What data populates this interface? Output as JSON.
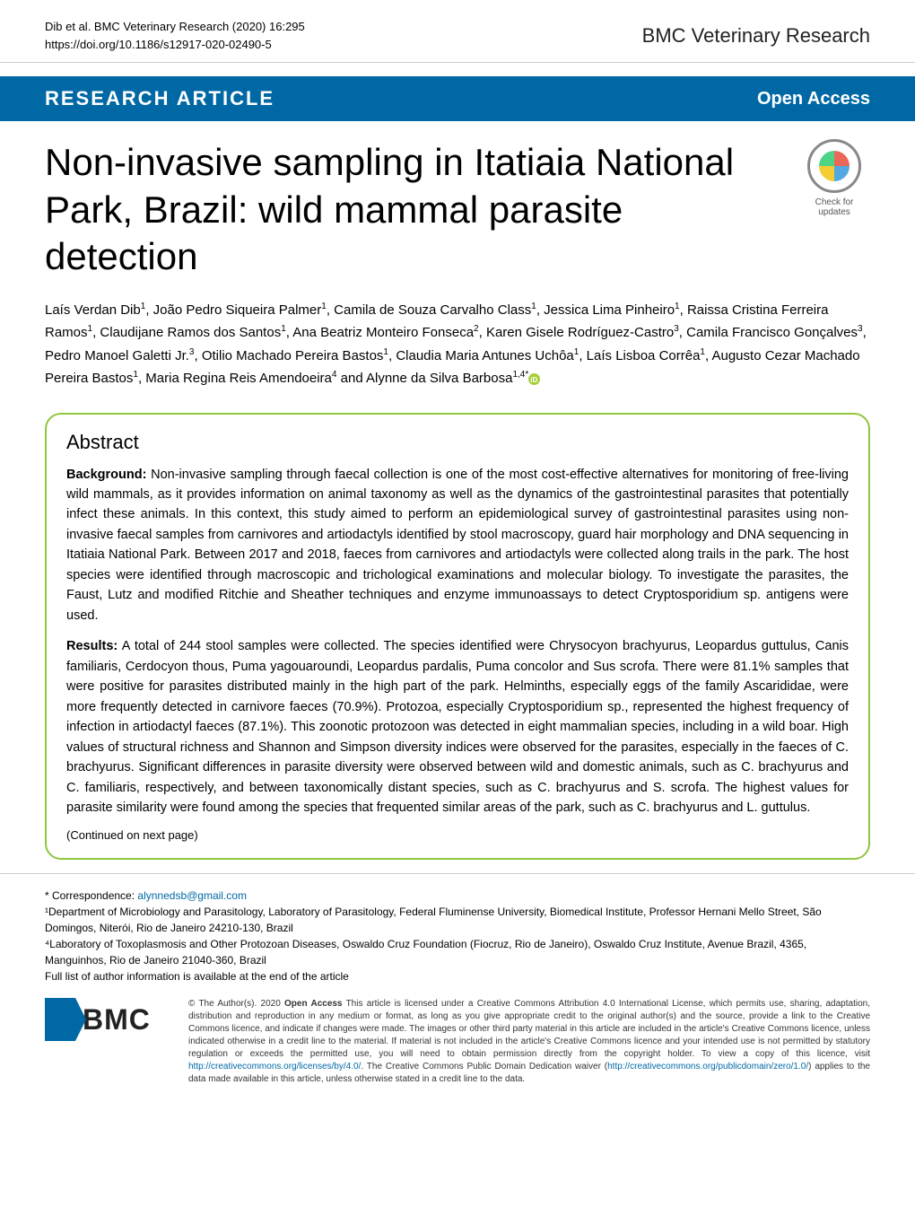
{
  "header": {
    "citation_line1": "Dib et al. BMC Veterinary Research       (2020) 16:295",
    "citation_line2": "https://doi.org/10.1186/s12917-020-02490-5",
    "journal_name": "BMC Veterinary Research"
  },
  "article_bar": {
    "type": "RESEARCH ARTICLE",
    "access": "Open Access"
  },
  "title": "Non-invasive sampling in Itatiaia National Park, Brazil: wild mammal parasite detection",
  "crossmark": {
    "label": "Check for updates"
  },
  "authors": {
    "line1_pre": "Laís Verdan Dib",
    "a1_sup": "1",
    "a2": ", João Pedro Siqueira Palmer",
    "a2_sup": "1",
    "a3": ", Camila de Souza Carvalho Class",
    "a3_sup": "1",
    "a4": ", Jessica Lima Pinheiro",
    "a4_sup": "1",
    "a5": ", Raissa Cristina Ferreira Ramos",
    "a5_sup": "1",
    "a6": ", Claudijane Ramos dos Santos",
    "a6_sup": "1",
    "a7": ", Ana Beatriz Monteiro Fonseca",
    "a7_sup": "2",
    "a8": ", Karen Gisele Rodríguez-Castro",
    "a8_sup": "3",
    "a9": ", Camila Francisco Gonçalves",
    "a9_sup": "3",
    "a10": ", Pedro Manoel Galetti Jr.",
    "a10_sup": "3",
    "a11": ", Otilio Machado Pereira Bastos",
    "a11_sup": "1",
    "a12": ", Claudia Maria Antunes Uchôa",
    "a12_sup": "1",
    "a13": ", Laís Lisboa Corrêa",
    "a13_sup": "1",
    "a14": ", Augusto Cezar Machado Pereira Bastos",
    "a14_sup": "1",
    "a15": ", Maria Regina Reis Amendoeira",
    "a15_sup": "4",
    "a16_pre": " and Alynne da Silva Barbosa",
    "a16_sup": "1,4*"
  },
  "abstract": {
    "heading": "Abstract",
    "background_label": "Background:",
    "background_text": " Non-invasive sampling through faecal collection is one of the most cost-effective alternatives for monitoring of free-living wild mammals, as it provides information on animal taxonomy as well as the dynamics of the gastrointestinal parasites that potentially infect these animals. In this context, this study aimed to perform an epidemiological survey of gastrointestinal parasites using non-invasive faecal samples from carnivores and artiodactyls identified by stool macroscopy, guard hair morphology and DNA sequencing in Itatiaia National Park. Between 2017 and 2018, faeces from carnivores and artiodactyls were collected along trails in the park. The host species were identified through macroscopic and trichological examinations and molecular biology. To investigate the parasites, the Faust, Lutz and modified Ritchie and Sheather techniques and enzyme immunoassays to detect Cryptosporidium sp. antigens were used.",
    "results_label": "Results:",
    "results_text": " A total of 244 stool samples were collected. The species identified were Chrysocyon brachyurus, Leopardus guttulus, Canis familiaris, Cerdocyon thous, Puma yagouaroundi, Leopardus pardalis, Puma concolor and Sus scrofa. There were 81.1% samples that were positive for parasites distributed mainly in the high part of the park. Helminths, especially eggs of the family Ascarididae, were more frequently detected in carnivore faeces (70.9%). Protozoa, especially Cryptosporidium sp., represented the highest frequency of infection in artiodactyl faeces (87.1%). This zoonotic protozoon was detected in eight mammalian species, including in a wild boar. High values of structural richness and Shannon and Simpson diversity indices were observed for the parasites, especially in the faeces of C. brachyurus. Significant differences in parasite diversity were observed between wild and domestic animals, such as C. brachyurus and C. familiaris, respectively, and between taxonomically distant species, such as C. brachyurus and S. scrofa. The highest values for parasite similarity were found among the species that frequented similar areas of the park, such as C. brachyurus and L. guttulus.",
    "continued": "(Continued on next page)"
  },
  "correspondence": {
    "star": "* Correspondence: ",
    "email": "alynnedsb@gmail.com",
    "aff1": "¹Department of Microbiology and Parasitology, Laboratory of Parasitology, Federal Fluminense University, Biomedical Institute, Professor Hernani Mello Street, São Domingos, Niterói, Rio de Janeiro 24210-130, Brazil",
    "aff4": "⁴Laboratory of Toxoplasmosis and Other Protozoan Diseases, Oswaldo Cruz Foundation (Fiocruz, Rio de Janeiro), Oswaldo Cruz Institute, Avenue Brazil, 4365, Manguinhos, Rio de Janeiro 21040-360, Brazil",
    "full_list": "Full list of author information is available at the end of the article"
  },
  "bmc_logo_text": "BMC",
  "license": {
    "copyright": "© The Author(s). 2020 ",
    "open_access_bold": "Open Access",
    "text1": " This article is licensed under a Creative Commons Attribution 4.0 International License, which permits use, sharing, adaptation, distribution and reproduction in any medium or format, as long as you give appropriate credit to the original author(s) and the source, provide a link to the Creative Commons licence, and indicate if changes were made. The images or other third party material in this article are included in the article's Creative Commons licence, unless indicated otherwise in a credit line to the material. If material is not included in the article's Creative Commons licence and your intended use is not permitted by statutory regulation or exceeds the permitted use, you will need to obtain permission directly from the copyright holder. To view a copy of this licence, visit ",
    "link1": "http://creativecommons.org/licenses/by/4.0/",
    "text2": ". The Creative Commons Public Domain Dedication waiver (",
    "link2": "http://creativecommons.org/publicdomain/zero/1.0/",
    "text3": ") applies to the data made available in this article, unless otherwise stated in a credit line to the data."
  },
  "colors": {
    "brand_blue": "#0068a4",
    "abstract_border": "#8fc63d",
    "orcid_green": "#a6ce39"
  }
}
